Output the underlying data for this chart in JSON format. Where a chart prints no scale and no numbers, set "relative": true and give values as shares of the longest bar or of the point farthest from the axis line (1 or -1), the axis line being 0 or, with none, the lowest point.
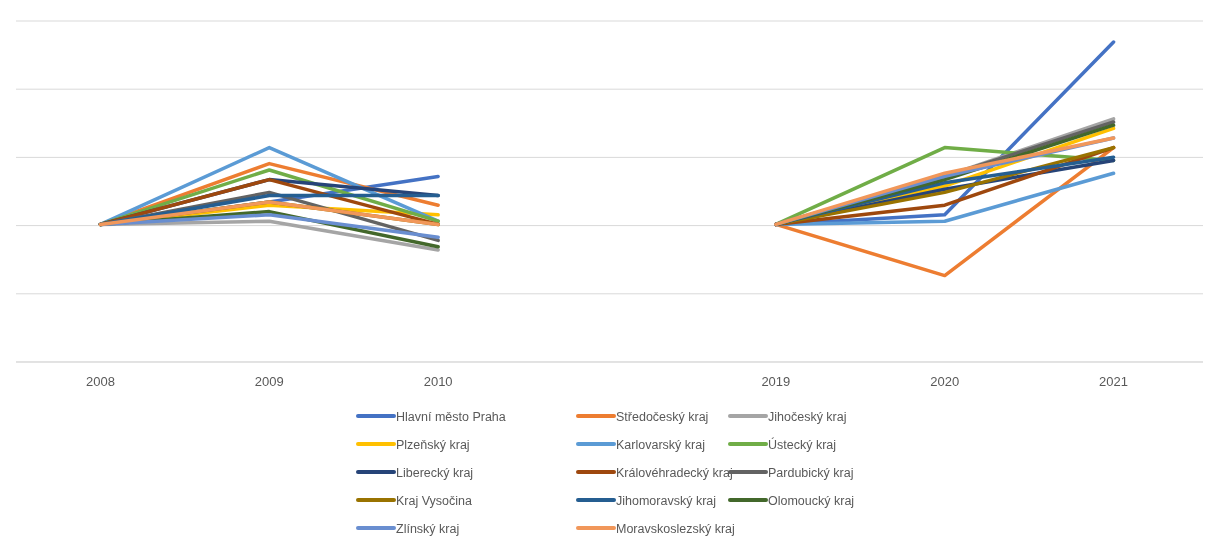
{
  "chart_data": {
    "type": "line",
    "relative": true,
    "grid": "y",
    "legend": "bottom",
    "marker": "none",
    "line_style": "solid",
    "categories": [
      "2008",
      "2009",
      "2010",
      null,
      "2019",
      "2020",
      "2021"
    ],
    "series": [
      {
        "name": "Hlavní město Praha",
        "color": "#4472c4",
        "values": [
          0.43,
          0.5,
          0.58,
          null,
          0.43,
          0.46,
          1.0
        ]
      },
      {
        "name": "Středočeský kraj",
        "color": "#ed7d31",
        "values": [
          0.43,
          0.62,
          0.49,
          null,
          0.43,
          0.27,
          0.67
        ]
      },
      {
        "name": "Jihočeský kraj",
        "color": "#a5a5a5",
        "values": [
          0.43,
          0.44,
          0.35,
          null,
          0.43,
          0.58,
          0.76
        ]
      },
      {
        "name": "Plzeňský kraj",
        "color": "#ffc000",
        "values": [
          0.43,
          0.49,
          0.46,
          null,
          0.43,
          0.55,
          0.73
        ]
      },
      {
        "name": "Karlovarský kraj",
        "color": "#5b9bd5",
        "values": [
          0.43,
          0.67,
          0.44,
          null,
          0.43,
          0.44,
          0.59
        ]
      },
      {
        "name": "Ústecký kraj",
        "color": "#70ad47",
        "values": [
          0.43,
          0.6,
          0.44,
          null,
          0.43,
          0.67,
          0.63
        ]
      },
      {
        "name": "Liberecký kraj",
        "color": "#264478",
        "values": [
          0.43,
          0.57,
          0.52,
          null,
          0.43,
          0.54,
          0.63
        ]
      },
      {
        "name": "Královéhradecký kraj",
        "color": "#9e480e",
        "values": [
          0.43,
          0.57,
          0.43,
          null,
          0.43,
          0.49,
          0.67
        ]
      },
      {
        "name": "Pardubický kraj",
        "color": "#636363",
        "values": [
          0.43,
          0.53,
          0.38,
          null,
          0.43,
          0.58,
          0.75
        ]
      },
      {
        "name": "Kraj Vysočina",
        "color": "#997300",
        "values": [
          0.43,
          0.5,
          0.43,
          null,
          0.43,
          0.53,
          0.67
        ]
      },
      {
        "name": "Jihomoravský kraj",
        "color": "#255e91",
        "values": [
          0.43,
          0.52,
          0.52,
          null,
          0.43,
          0.56,
          0.64
        ]
      },
      {
        "name": "Olomoucký kraj",
        "color": "#43682b",
        "values": [
          0.43,
          0.47,
          0.36,
          null,
          0.43,
          0.57,
          0.74
        ]
      },
      {
        "name": "Zlínský kraj",
        "color": "#698ed0",
        "values": [
          0.43,
          0.46,
          0.39,
          null,
          0.43,
          0.58,
          0.7
        ]
      },
      {
        "name": "Moravskoslezský kraj",
        "color": "#f1975a",
        "values": [
          0.43,
          0.5,
          0.43,
          null,
          0.43,
          0.59,
          0.7
        ]
      }
    ]
  }
}
